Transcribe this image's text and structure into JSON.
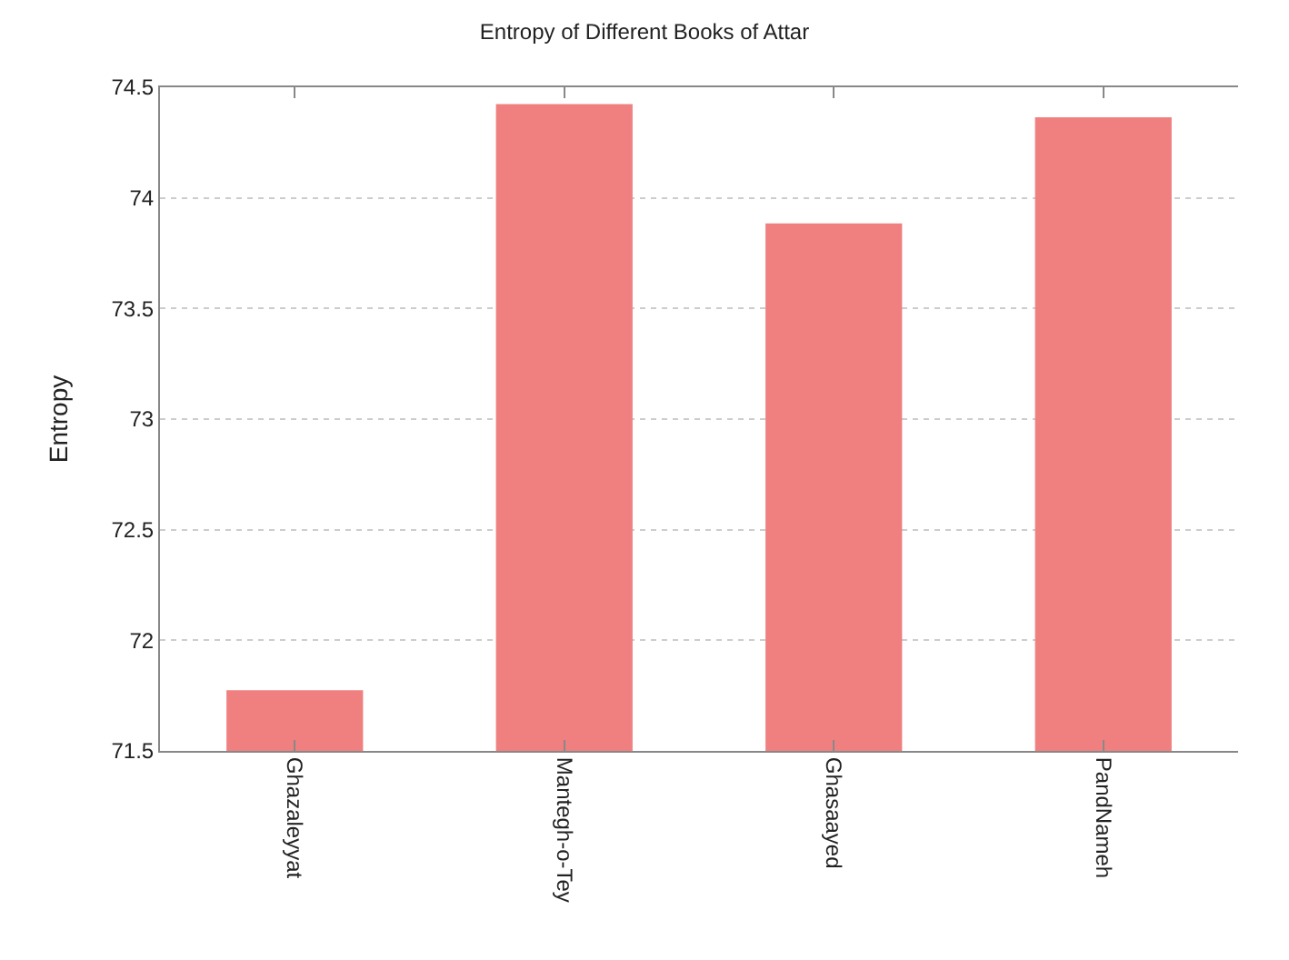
{
  "chart_data": {
    "type": "bar",
    "title": "Entropy of Different Books of Attar",
    "ylabel": "Entropy",
    "categories": [
      "Ghazaleyyat",
      "Mantegh-o-Tey",
      "Ghasaayed",
      "PandNameh"
    ],
    "values": [
      71.77,
      74.42,
      73.88,
      74.36
    ],
    "color": "#f08080",
    "ylim": [
      71.5,
      74.5
    ],
    "yticks": [
      71.5,
      72,
      72.5,
      73,
      73.5,
      74,
      74.5
    ],
    "grid": "y"
  }
}
